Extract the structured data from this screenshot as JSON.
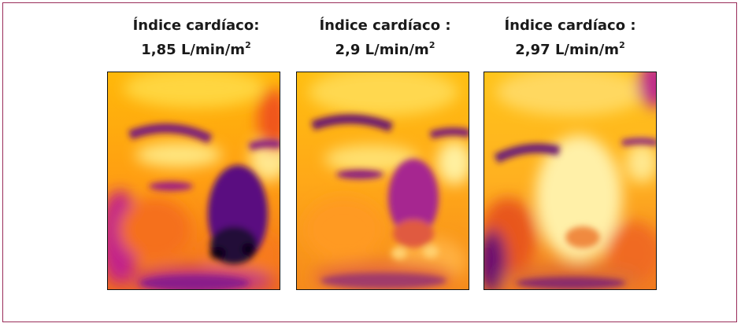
{
  "figure": {
    "panels": [
      {
        "title": "Índice cardíaco:",
        "value": "1,85 L/min/m",
        "superscript": "2"
      },
      {
        "title": "Índice cardíaco :",
        "value": "2,9 L/min/m",
        "superscript": "2"
      },
      {
        "title": "Índice cardíaco :",
        "value": "2,97 L/min/m",
        "superscript": "2"
      }
    ]
  },
  "colors": {
    "border": "#9a2d5a",
    "hot": "#fff3a0",
    "warm": "#ffb000",
    "mid": "#f2551f",
    "cool": "#a2148c",
    "cold": "#1a0530"
  }
}
